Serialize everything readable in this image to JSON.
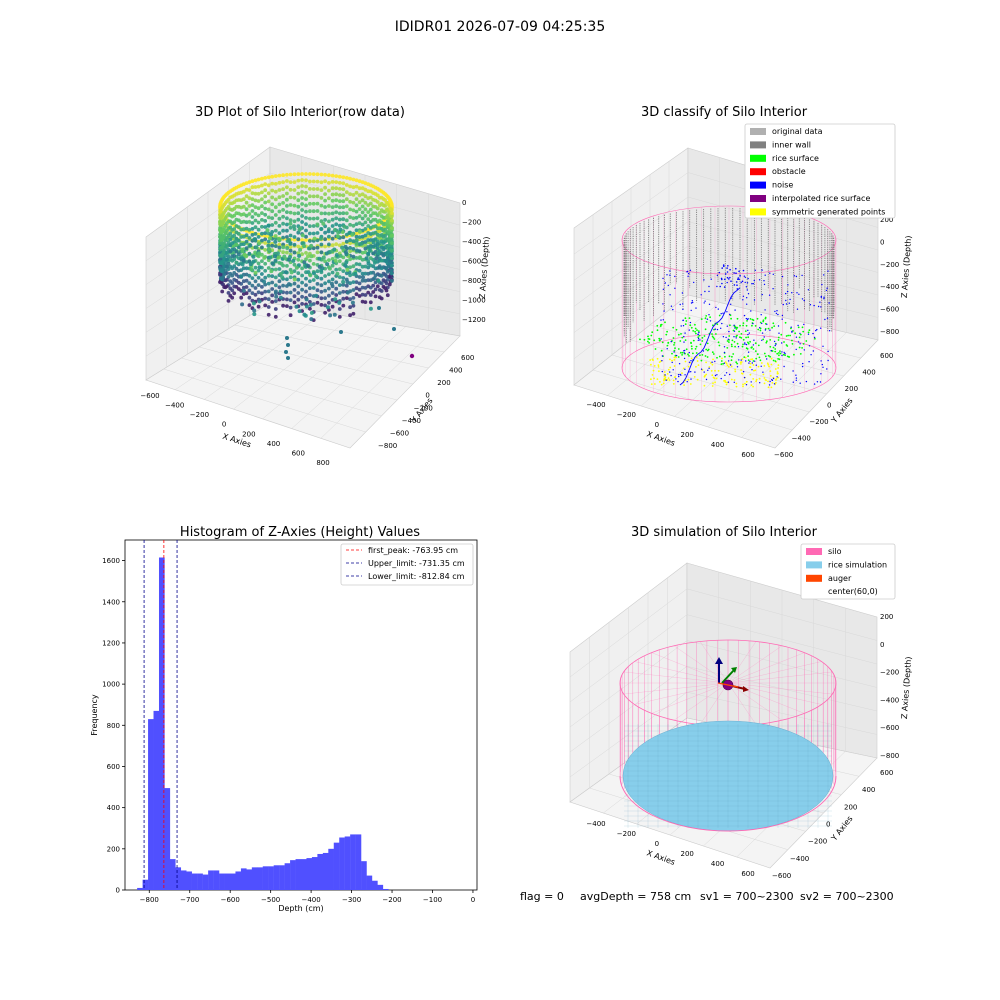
{
  "figure_title": "IDIDR01 2026-07-09 04:25:35",
  "footer": {
    "flag": "flag = 0",
    "avg_depth": "avgDepth = 758 cm",
    "sv1": "sv1 = 700~2300",
    "sv2": "sv2 = 700~2300"
  },
  "colors": {
    "grey_data": "#b0b0b0",
    "inner_wall": "#808080",
    "rice_surface": "#00ff00",
    "obstacle": "#ff0000",
    "noise": "#0000ff",
    "interpolated": "#800080",
    "symmetric": "#ffff00",
    "silo": "#ff69b4",
    "rice_sim": "#87ceeb",
    "auger": "#ff4500",
    "hist_bar": "#5050ff",
    "peak_line": "#ff0000",
    "limit_line": "#00008b"
  },
  "chart_data": [
    {
      "type": "scatter3d",
      "title": "3D Plot of Silo Interior(row data)",
      "xlabel": "X Axies",
      "ylabel": "Y Axies",
      "zlabel": "Z Axies (Depth)",
      "x_ticks": [
        "−600",
        "−400",
        "−200",
        "0",
        "200",
        "400",
        "600",
        "800"
      ],
      "y_ticks": [
        "−800",
        "−600",
        "−400",
        "−200",
        "0",
        "200",
        "400",
        "600"
      ],
      "z_ticks": [
        "−1200",
        "−1000",
        "−800",
        "−600",
        "−400",
        "−200",
        "0"
      ],
      "xlim": [
        -600,
        900
      ],
      "ylim": [
        -900,
        700
      ],
      "zlim": [
        -1400,
        100
      ],
      "colormap": "viridis",
      "silo_center": [
        60,
        0
      ],
      "silo_radius": 550,
      "wall_depth_range": [
        -800,
        -250
      ],
      "surface_depth": -763.95
    },
    {
      "type": "scatter3d",
      "title": "3D classify of Silo Interior",
      "zlabel": "Z Axies (Depth)",
      "xlabel": "X Axies",
      "ylabel": "Y Axies",
      "x_ticks": [
        "−400",
        "−200",
        "0",
        "200",
        "400",
        "600"
      ],
      "y_ticks": [
        "−600",
        "−400",
        "−200",
        "0",
        "200",
        "400",
        "600"
      ],
      "z_ticks": [
        "−800",
        "−600",
        "−400",
        "−200",
        "0",
        "200"
      ],
      "xlim": [
        -500,
        700
      ],
      "ylim": [
        -650,
        650
      ],
      "zlim": [
        -900,
        250
      ],
      "legend_position": "upper-right",
      "legend": [
        {
          "label": "original data",
          "color": "#b0b0b0"
        },
        {
          "label": "inner wall",
          "color": "#808080"
        },
        {
          "label": "rice surface",
          "color": "#00ff00"
        },
        {
          "label": "obstacle",
          "color": "#ff0000"
        },
        {
          "label": "noise",
          "color": "#0000ff"
        },
        {
          "label": "interpolated rice surface",
          "color": "#800080"
        },
        {
          "label": "symmetric generated points",
          "color": "#ffff00"
        }
      ]
    },
    {
      "type": "bar",
      "title": "Histogram of Z-Axies (Height) Values",
      "xlabel": "Depth (cm)",
      "ylabel": "Frequency",
      "xlim": [
        -860,
        10
      ],
      "ylim": [
        0,
        1700
      ],
      "x_ticks": [
        -800,
        -700,
        -600,
        -500,
        -400,
        -300,
        -200,
        -100,
        0
      ],
      "x_tick_labels": [
        "−800",
        "−700",
        "−600",
        "−500",
        "−400",
        "−300",
        "−200",
        "−100",
        "0"
      ],
      "y_ticks": [
        0,
        200,
        400,
        600,
        800,
        1000,
        1200,
        1400,
        1600
      ],
      "y_tick_labels": [
        "0",
        "200",
        "400",
        "600",
        "800",
        "1000",
        "1200",
        "1400",
        "1600"
      ],
      "bin_start": -830,
      "bin_width": 13.5,
      "counts": [
        10,
        50,
        830,
        870,
        1615,
        495,
        150,
        110,
        95,
        90,
        80,
        80,
        75,
        95,
        95,
        80,
        80,
        80,
        90,
        105,
        100,
        110,
        110,
        115,
        115,
        120,
        120,
        130,
        145,
        150,
        150,
        155,
        160,
        175,
        180,
        200,
        230,
        255,
        260,
        270,
        270,
        140,
        70,
        45,
        25,
        5
      ],
      "vlines": [
        {
          "x": -763.95,
          "label": "first_peak: -763.95 cm",
          "color": "#ff0000"
        },
        {
          "x": -731.35,
          "label": "Upper_limit: -731.35 cm",
          "color": "#00008b"
        },
        {
          "x": -812.84,
          "label": "Lower_limit: -812.84 cm",
          "color": "#00008b"
        }
      ],
      "legend_position": "upper-right"
    },
    {
      "type": "surface3d",
      "title": "3D simulation of Silo Interior",
      "xlabel": "X Axies",
      "ylabel": "Y Axies",
      "zlabel": "Z Axies (Depth)",
      "x_ticks": [
        "−400",
        "−200",
        "0",
        "200",
        "400",
        "600"
      ],
      "y_ticks": [
        "−600",
        "−400",
        "−200",
        "0",
        "200",
        "400",
        "600"
      ],
      "z_ticks": [
        "−800",
        "−600",
        "−400",
        "−200",
        "0",
        "200"
      ],
      "legend_position": "upper-right",
      "legend": [
        {
          "label": "silo",
          "color": "#ff69b4"
        },
        {
          "label": "rice simulation",
          "color": "#87ceeb"
        },
        {
          "label": "auger",
          "color": "#ff4500"
        },
        {
          "label": "center(60,0)",
          "color": ""
        }
      ],
      "silo_center": [
        60,
        0
      ],
      "rice_depth": -758
    }
  ]
}
